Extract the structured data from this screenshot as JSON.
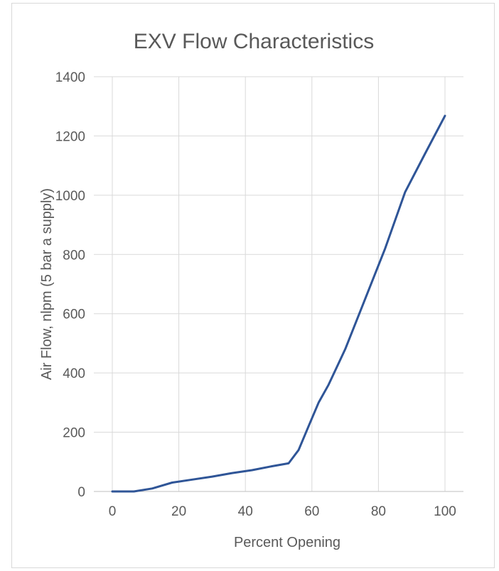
{
  "chart_data": {
    "type": "line",
    "title": "EXV Flow Characteristics",
    "xlabel": "Percent Opening",
    "ylabel": "Air Flow, nlpm (5 bar a supply)",
    "xlim": [
      0,
      100
    ],
    "ylim": [
      0,
      1400
    ],
    "xticks": [
      0,
      20,
      40,
      60,
      80,
      100
    ],
    "yticks": [
      0,
      200,
      400,
      600,
      800,
      1000,
      1200,
      1400
    ],
    "grid": true,
    "legend": "none",
    "series": [
      {
        "color": "#2f5597",
        "x": [
          0,
          6.5,
          12,
          18,
          24,
          30,
          36,
          42,
          48,
          53,
          56,
          59,
          62,
          65,
          70,
          76,
          82,
          88,
          94,
          100
        ],
        "y": [
          0,
          0,
          10,
          30,
          40,
          50,
          62,
          72,
          85,
          95,
          140,
          220,
          300,
          360,
          480,
          650,
          820,
          1010,
          1140,
          1268
        ]
      }
    ]
  }
}
